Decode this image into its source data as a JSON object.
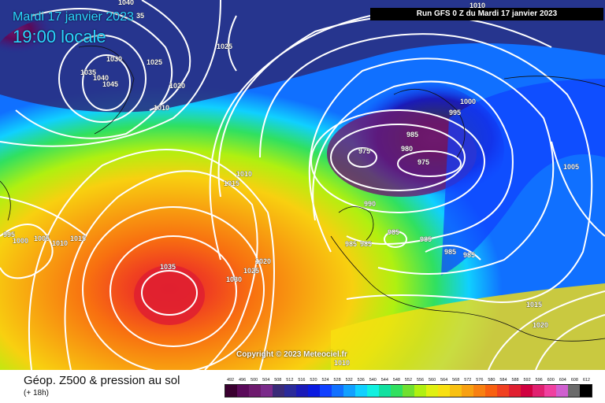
{
  "map": {
    "date_label": "Mardi 17 janvier 2023",
    "time_label": "19:00 locale",
    "run_label": "Run GFS 0 Z du Mardi 17 janvier 2023",
    "copyright": "Copyright © 2023 Meteociel.fr",
    "isobar_labels": [
      "1040",
      "35",
      "1010",
      "1030",
      "1025",
      "1025",
      "1035",
      "1040",
      "1045",
      "1020",
      "1010",
      "1000",
      "995",
      "985",
      "975",
      "980",
      "975",
      "1005",
      "1010",
      "1015",
      "990",
      "995",
      "1000",
      "1005",
      "1010",
      "1015",
      "985",
      "985",
      "985",
      "985",
      "985",
      "985",
      "1035",
      "1020",
      "1025",
      "1030",
      "1015",
      "1020",
      "1010"
    ],
    "centers": {
      "high_atlantic": "1035",
      "low_scandinavia": "975",
      "high_greenland": "1045"
    }
  },
  "legend": {
    "title": "Géop. Z500 & pression au sol",
    "subtitle": "(+ 18h)",
    "scale_values": [
      "492",
      "496",
      "500",
      "504",
      "508",
      "512",
      "516",
      "520",
      "524",
      "528",
      "532",
      "536",
      "540",
      "544",
      "548",
      "552",
      "556",
      "560",
      "564",
      "568",
      "572",
      "576",
      "580",
      "584",
      "588",
      "592",
      "596",
      "600",
      "604",
      "608",
      "612"
    ],
    "scale_colors": [
      "#3a0030",
      "#5a0a5a",
      "#6e1a6e",
      "#7a2a8a",
      "#3a2a78",
      "#2a2a9a",
      "#1a1ab8",
      "#0a1ae0",
      "#1040ff",
      "#1070ff",
      "#10a0ff",
      "#10d0ff",
      "#10f0e0",
      "#10e0a0",
      "#30e060",
      "#70e030",
      "#b0f010",
      "#e0f010",
      "#f8e010",
      "#f8c010",
      "#f8a010",
      "#f88010",
      "#f86010",
      "#f04020",
      "#e02030",
      "#d00040",
      "#e02070",
      "#f040a0",
      "#d060d0",
      "#6a6a6a",
      "#000000"
    ]
  }
}
